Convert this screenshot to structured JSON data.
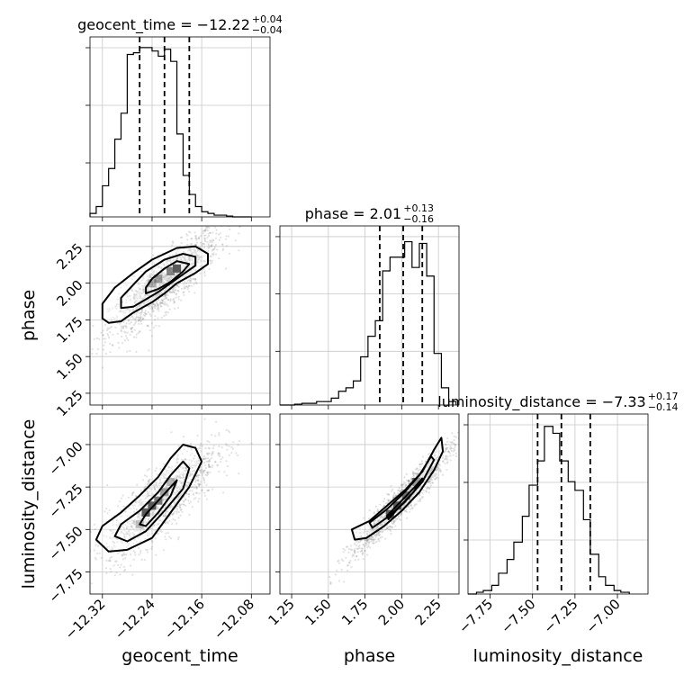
{
  "chart_data": {
    "type": "corner",
    "parameters": [
      "geocent_time",
      "phase",
      "luminosity_distance"
    ],
    "titles": [
      {
        "text": "geocent_time = −12.22",
        "sup": "+0.04",
        "sub": "−0.04"
      },
      {
        "text": "phase = 2.01",
        "sup": "+0.13",
        "sub": "−0.16"
      },
      {
        "text": "luminosity_distance = −7.33",
        "sup": "+0.17",
        "sub": "−0.14"
      }
    ],
    "axis_labels": {
      "x": [
        "geocent_time",
        "phase",
        "luminosity_distance"
      ],
      "y": [
        "phase",
        "luminosity_distance"
      ]
    },
    "ranges": [
      [
        -12.34,
        -12.05
      ],
      [
        1.17,
        2.39
      ],
      [
        -7.88,
        -6.82
      ]
    ],
    "ticks": [
      [
        {
          "v": -12.32,
          "l": "−12.32"
        },
        {
          "v": -12.24,
          "l": "−12.24"
        },
        {
          "v": -12.16,
          "l": "−12.16"
        },
        {
          "v": -12.08,
          "l": "−12.08"
        }
      ],
      [
        {
          "v": 1.25,
          "l": "1.25"
        },
        {
          "v": 1.5,
          "l": "1.50"
        },
        {
          "v": 1.75,
          "l": "1.75"
        },
        {
          "v": 2.0,
          "l": "2.00"
        },
        {
          "v": 2.25,
          "l": "2.25"
        }
      ],
      [
        {
          "v": -7.75,
          "l": "−7.75"
        },
        {
          "v": -7.5,
          "l": "−7.50"
        },
        {
          "v": -7.25,
          "l": "−7.25"
        },
        {
          "v": -7.0,
          "l": "−7.00"
        }
      ]
    ],
    "quantiles": [
      [
        -12.26,
        -12.22,
        -12.18
      ],
      [
        1.85,
        2.01,
        2.14
      ],
      [
        -7.47,
        -7.33,
        -7.16
      ]
    ],
    "histograms": [
      {
        "edges": [
          -12.34,
          -12.33,
          -12.32,
          -12.31,
          -12.3,
          -12.29,
          -12.28,
          -12.27,
          -12.26,
          -12.25,
          -12.24,
          -12.23,
          -12.22,
          -12.21,
          -12.2,
          -12.19,
          -12.18,
          -12.17,
          -12.16,
          -12.15,
          -12.14,
          -12.13,
          -12.12,
          -12.11,
          -12.1,
          -12.09,
          -12.08
        ],
        "counts": [
          0.02,
          0.06,
          0.18,
          0.28,
          0.45,
          0.6,
          0.94,
          0.95,
          0.98,
          0.98,
          0.96,
          0.93,
          0.97,
          0.9,
          0.48,
          0.24,
          0.13,
          0.06,
          0.03,
          0.02,
          0.01,
          0.01,
          0.005,
          0.0,
          0.0,
          0.0
        ],
        "ymax": 1.0
      },
      {
        "edges": [
          1.17,
          1.22,
          1.27,
          1.32,
          1.37,
          1.42,
          1.47,
          1.52,
          1.57,
          1.62,
          1.67,
          1.72,
          1.77,
          1.82,
          1.87,
          1.92,
          1.97,
          2.02,
          2.07,
          2.12,
          2.17,
          2.22,
          2.27,
          2.32,
          2.37
        ],
        "counts": [
          0.0,
          0.0,
          0.005,
          0.01,
          0.01,
          0.02,
          0.02,
          0.04,
          0.08,
          0.1,
          0.14,
          0.28,
          0.4,
          0.49,
          0.78,
          0.86,
          0.86,
          0.95,
          0.8,
          0.94,
          0.75,
          0.3,
          0.1,
          0.02
        ],
        "ymax": 1.0
      },
      {
        "edges": [
          -7.88,
          -7.83,
          -7.79,
          -7.74,
          -7.7,
          -7.65,
          -7.61,
          -7.56,
          -7.52,
          -7.47,
          -7.43,
          -7.38,
          -7.34,
          -7.29,
          -7.25,
          -7.2,
          -7.16,
          -7.11,
          -7.07,
          -7.02,
          -6.98,
          -6.93
        ],
        "counts": [
          0.0,
          0.01,
          0.02,
          0.05,
          0.12,
          0.2,
          0.3,
          0.45,
          0.63,
          0.77,
          0.97,
          0.93,
          0.77,
          0.65,
          0.6,
          0.43,
          0.23,
          0.1,
          0.05,
          0.02,
          0.01
        ],
        "ymax": 1.0
      }
    ],
    "pairs": [
      {
        "x": 0,
        "y": 1,
        "contours": [
          [
            [
              -12.32,
              1.76
            ],
            [
              -12.31,
              1.73
            ],
            [
              -12.29,
              1.74
            ],
            [
              -12.27,
              1.8
            ],
            [
              -12.24,
              1.87
            ],
            [
              -12.22,
              1.93
            ],
            [
              -12.2,
              2.0
            ],
            [
              -12.17,
              2.07
            ],
            [
              -12.15,
              2.13
            ],
            [
              -12.15,
              2.2
            ],
            [
              -12.17,
              2.25
            ],
            [
              -12.2,
              2.24
            ],
            [
              -12.24,
              2.16
            ],
            [
              -12.27,
              2.07
            ],
            [
              -12.3,
              1.97
            ],
            [
              -12.32,
              1.86
            ]
          ],
          [
            [
              -12.29,
              1.83
            ],
            [
              -12.27,
              1.84
            ],
            [
              -12.25,
              1.89
            ],
            [
              -12.23,
              1.94
            ],
            [
              -12.21,
              2.0
            ],
            [
              -12.19,
              2.06
            ],
            [
              -12.17,
              2.12
            ],
            [
              -12.17,
              2.18
            ],
            [
              -12.19,
              2.2
            ],
            [
              -12.22,
              2.16
            ],
            [
              -12.25,
              2.08
            ],
            [
              -12.27,
              1.99
            ],
            [
              -12.29,
              1.9
            ]
          ],
          [
            [
              -12.25,
              1.93
            ],
            [
              -12.23,
              1.96
            ],
            [
              -12.21,
              2.01
            ],
            [
              -12.19,
              2.08
            ],
            [
              -12.18,
              2.13
            ],
            [
              -12.2,
              2.15
            ],
            [
              -12.22,
              2.1
            ],
            [
              -12.24,
              2.03
            ],
            [
              -12.25,
              1.97
            ]
          ]
        ],
        "cells": [
          {
            "x": -12.24,
            "y": 2.0,
            "a": 0.45
          },
          {
            "x": -12.23,
            "y": 2.03,
            "a": 0.55
          },
          {
            "x": -12.21,
            "y": 2.08,
            "a": 0.7
          },
          {
            "x": -12.2,
            "y": 2.1,
            "a": 1.0
          }
        ]
      },
      {
        "x": 0,
        "y": 2,
        "contours": [
          [
            [
              -12.33,
              -7.56
            ],
            [
              -12.32,
              -7.48
            ],
            [
              -12.29,
              -7.4
            ],
            [
              -12.26,
              -7.3
            ],
            [
              -12.23,
              -7.19
            ],
            [
              -12.21,
              -7.08
            ],
            [
              -12.19,
              -7.0
            ],
            [
              -12.17,
              -7.02
            ],
            [
              -12.16,
              -7.1
            ],
            [
              -12.18,
              -7.25
            ],
            [
              -12.21,
              -7.4
            ],
            [
              -12.24,
              -7.55
            ],
            [
              -12.28,
              -7.62
            ],
            [
              -12.31,
              -7.63
            ]
          ],
          [
            [
              -12.3,
              -7.54
            ],
            [
              -12.29,
              -7.47
            ],
            [
              -12.26,
              -7.39
            ],
            [
              -12.23,
              -7.28
            ],
            [
              -12.21,
              -7.18
            ],
            [
              -12.19,
              -7.1
            ],
            [
              -12.18,
              -7.14
            ],
            [
              -12.19,
              -7.26
            ],
            [
              -12.22,
              -7.39
            ],
            [
              -12.25,
              -7.51
            ],
            [
              -12.28,
              -7.57
            ]
          ],
          [
            [
              -12.26,
              -7.47
            ],
            [
              -12.25,
              -7.41
            ],
            [
              -12.23,
              -7.33
            ],
            [
              -12.21,
              -7.25
            ],
            [
              -12.2,
              -7.21
            ],
            [
              -12.21,
              -7.3
            ],
            [
              -12.23,
              -7.4
            ],
            [
              -12.25,
              -7.48
            ]
          ]
        ],
        "cells": [
          {
            "x": -12.26,
            "y": -7.47,
            "a": 0.35
          },
          {
            "x": -12.25,
            "y": -7.4,
            "a": 1.0
          },
          {
            "x": -12.24,
            "y": -7.36,
            "a": 1.0
          },
          {
            "x": -12.23,
            "y": -7.33,
            "a": 0.8
          },
          {
            "x": -12.22,
            "y": -7.28,
            "a": 0.55
          },
          {
            "x": -12.21,
            "y": -7.22,
            "a": 0.4
          }
        ]
      },
      {
        "x": 1,
        "y": 2,
        "contours": [
          [
            [
              1.66,
              -7.5
            ],
            [
              1.78,
              -7.45
            ],
            [
              1.9,
              -7.36
            ],
            [
              2.02,
              -7.27
            ],
            [
              2.14,
              -7.16
            ],
            [
              2.22,
              -7.03
            ],
            [
              2.27,
              -6.96
            ],
            [
              2.28,
              -7.04
            ],
            [
              2.22,
              -7.15
            ],
            [
              2.12,
              -7.28
            ],
            [
              2.0,
              -7.39
            ],
            [
              1.88,
              -7.48
            ],
            [
              1.76,
              -7.55
            ],
            [
              1.68,
              -7.56
            ]
          ],
          [
            [
              1.78,
              -7.46
            ],
            [
              1.9,
              -7.38
            ],
            [
              2.02,
              -7.28
            ],
            [
              2.12,
              -7.18
            ],
            [
              2.2,
              -7.07
            ],
            [
              2.22,
              -7.09
            ],
            [
              2.14,
              -7.22
            ],
            [
              2.02,
              -7.34
            ],
            [
              1.9,
              -7.43
            ],
            [
              1.8,
              -7.49
            ]
          ],
          [
            [
              1.9,
              -7.42
            ],
            [
              2.0,
              -7.33
            ],
            [
              2.1,
              -7.24
            ],
            [
              2.14,
              -7.2
            ],
            [
              2.08,
              -7.28
            ],
            [
              1.98,
              -7.37
            ],
            [
              1.91,
              -7.44
            ]
          ]
        ],
        "cells": [
          {
            "x": 1.92,
            "y": -7.41,
            "a": 1.0
          },
          {
            "x": 1.97,
            "y": -7.36,
            "a": 1.0
          },
          {
            "x": 2.03,
            "y": -7.3,
            "a": 0.8
          },
          {
            "x": 2.1,
            "y": -7.22,
            "a": 0.5
          }
        ]
      }
    ],
    "samples": [
      {
        "x": 0,
        "y": 1,
        "center": [
          -12.22,
          2.0
        ],
        "sd": [
          0.04,
          0.16
        ],
        "rho": 0.85
      },
      {
        "x": 0,
        "y": 2,
        "center": [
          -12.225,
          -7.33
        ],
        "sd": [
          0.04,
          0.15
        ],
        "rho": 0.8
      },
      {
        "x": 1,
        "y": 2,
        "center": [
          2.0,
          -7.33
        ],
        "sd": [
          0.16,
          0.15
        ],
        "rho": 0.96
      }
    ],
    "grid": true
  }
}
